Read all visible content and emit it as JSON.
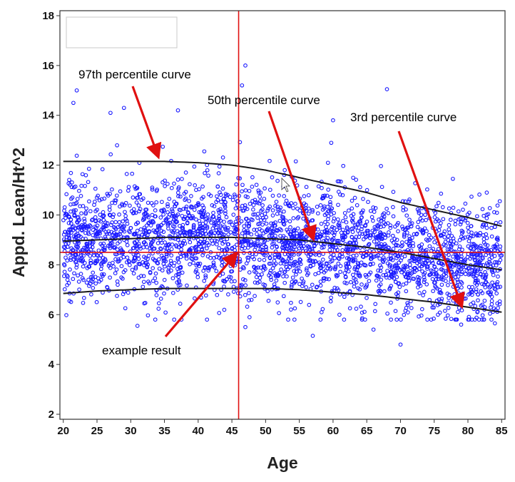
{
  "chart_data": {
    "type": "scatter",
    "xlabel": "Age",
    "ylabel": "Appd. Lean/Ht^2",
    "xlim": [
      19.5,
      85.5
    ],
    "ylim": [
      1.8,
      18.2
    ],
    "xticks": [
      20,
      25,
      30,
      35,
      40,
      45,
      50,
      55,
      60,
      65,
      70,
      75,
      80,
      85
    ],
    "yticks": [
      2,
      4,
      6,
      8,
      10,
      12,
      14,
      16,
      18
    ],
    "grid": false,
    "legend": "empty box, top-left",
    "colors": {
      "points": "#1a1aff",
      "curves": "#1a1a1a",
      "crosshair": "#e01010",
      "arrows": "#e01010"
    },
    "series": [
      {
        "name": "97th percentile curve",
        "x": [
          20,
          25,
          30,
          35,
          40,
          45,
          50,
          55,
          60,
          65,
          70,
          75,
          80,
          85
        ],
        "y": [
          12.15,
          12.15,
          12.15,
          12.15,
          12.1,
          12.0,
          11.8,
          11.5,
          11.2,
          10.9,
          10.5,
          10.2,
          9.9,
          9.55
        ]
      },
      {
        "name": "50th percentile curve",
        "x": [
          20,
          25,
          30,
          35,
          40,
          45,
          50,
          55,
          60,
          65,
          70,
          75,
          80,
          85
        ],
        "y": [
          8.95,
          9.0,
          9.05,
          9.1,
          9.1,
          9.1,
          9.05,
          9.0,
          8.85,
          8.7,
          8.5,
          8.25,
          8.0,
          7.8
        ]
      },
      {
        "name": "3rd percentile curve",
        "x": [
          20,
          25,
          30,
          35,
          40,
          45,
          50,
          55,
          60,
          65,
          70,
          75,
          80,
          85
        ],
        "y": [
          6.85,
          6.95,
          7.0,
          7.05,
          7.05,
          7.05,
          7.05,
          7.0,
          6.9,
          6.8,
          6.65,
          6.5,
          6.3,
          6.1
        ]
      }
    ],
    "scatter_points": {
      "name": "observations",
      "marker": "open circle",
      "n": 3000,
      "x": [
        20,
        85
      ],
      "median_by_age": {
        "x": [
          20,
          45,
          60,
          85
        ],
        "y": [
          8.95,
          9.1,
          8.85,
          7.8
        ]
      },
      "spread_sd": 1.15,
      "notable_points": [
        {
          "x": 22,
          "y": 15.0
        },
        {
          "x": 21.5,
          "y": 14.5
        },
        {
          "x": 29,
          "y": 14.3
        },
        {
          "x": 27,
          "y": 14.1
        },
        {
          "x": 37,
          "y": 14.2
        },
        {
          "x": 47,
          "y": 16.0
        },
        {
          "x": 46.5,
          "y": 15.2
        },
        {
          "x": 68,
          "y": 15.05
        },
        {
          "x": 60,
          "y": 13.8
        },
        {
          "x": 57,
          "y": 5.15
        },
        {
          "x": 70,
          "y": 4.8
        },
        {
          "x": 47,
          "y": 5.5
        },
        {
          "x": 31,
          "y": 5.55
        },
        {
          "x": 66,
          "y": 5.4
        },
        {
          "x": 79,
          "y": 5.6
        },
        {
          "x": 84,
          "y": 5.65
        }
      ]
    },
    "example_result": {
      "label": "example result",
      "x": 46,
      "y": 8.5
    },
    "annotations": [
      {
        "text": "97th percentile curve",
        "target": {
          "x": 34,
          "y": 12.4
        }
      },
      {
        "text": "50th percentile curve",
        "target": {
          "x": 57,
          "y": 9.1
        }
      },
      {
        "text": "3rd percentile curve",
        "target": {
          "x": 79,
          "y": 6.4
        }
      },
      {
        "text": "example result",
        "target": {
          "x": 45.5,
          "y": 8.4
        }
      }
    ]
  }
}
